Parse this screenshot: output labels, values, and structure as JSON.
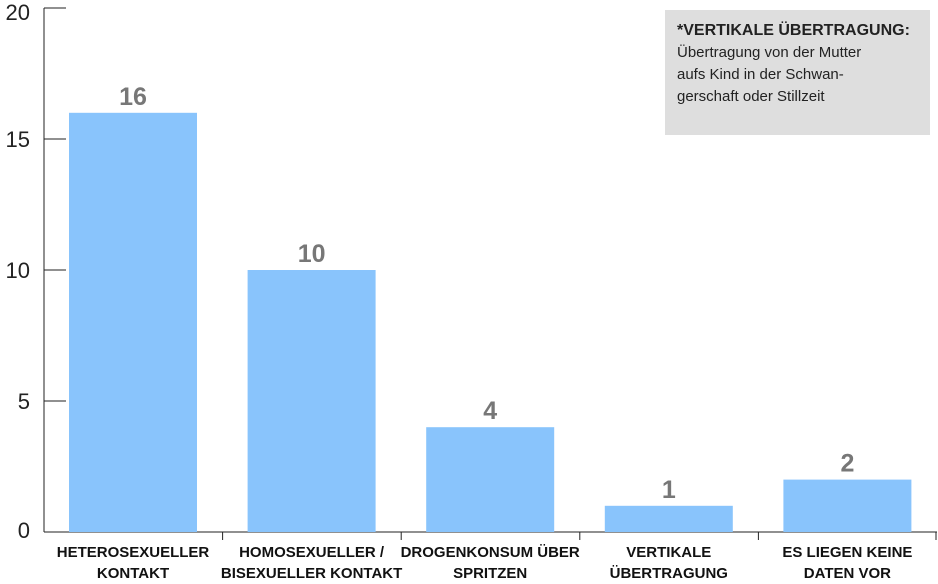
{
  "chart_data": {
    "type": "bar",
    "categories": [
      [
        "HETEROSEXUELLER",
        "KONTAKT"
      ],
      [
        "HOMOSEXUELLER /",
        "BISEXUELLER KONTAKT"
      ],
      [
        "DROGENKONSUM ÜBER",
        "SPRITZEN"
      ],
      [
        "VERTIKALE",
        "ÜBERTRAGUNG"
      ],
      [
        "ES LIEGEN KEINE",
        "DATEN VOR"
      ]
    ],
    "values": [
      16,
      10,
      4,
      1,
      2
    ],
    "value_labels": [
      "16",
      "10",
      "4",
      "1",
      "2"
    ],
    "yticks": [
      0,
      5,
      10,
      15,
      20
    ],
    "ytick_labels": [
      "0",
      "5",
      "10",
      "15",
      "20"
    ],
    "ylim": [
      0,
      20
    ],
    "grid": false,
    "bar_color": "#89c4fc",
    "value_label_color": "#777777",
    "title": "",
    "xlabel": "",
    "ylabel": ""
  },
  "note": {
    "title": "*VERTIKALE ÜBERTRAGUNG:",
    "text": "Übertragung von der Mutter\naufs Kind in der Schwan-\ngerschaft oder Stillzeit"
  }
}
